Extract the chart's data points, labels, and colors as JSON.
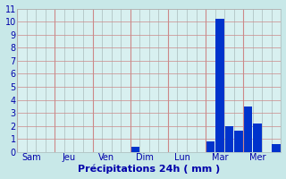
{
  "all_values": [
    0,
    0,
    0,
    0,
    0,
    0,
    0,
    0,
    0,
    0,
    0,
    0,
    0.4,
    0,
    0,
    0,
    0,
    0,
    0,
    0,
    0.8,
    10.2,
    2.0,
    1.6,
    3.5,
    2.2,
    0,
    0.6
  ],
  "n_bars": 28,
  "day_tick_positions": [
    1.5,
    5.5,
    9.5,
    13.5,
    17.5,
    21.5,
    25.5
  ],
  "day_labels": [
    "Sam",
    "Jeu",
    "Ven",
    "Dim",
    "Lun",
    "Mar",
    "Mer"
  ],
  "day_separator_positions": [
    0,
    4,
    8,
    12,
    16,
    20,
    24,
    28
  ],
  "bar_color": "#0033cc",
  "bg_color": "#c8e8e8",
  "plot_bg_color": "#d8f0f0",
  "grid_color_h": "#cc8888",
  "grid_color_v": "#aabbbb",
  "xlabel": "Précipitations 24h ( mm )",
  "ylim": [
    0,
    11
  ],
  "yticks": [
    0,
    1,
    2,
    3,
    4,
    5,
    6,
    7,
    8,
    9,
    10,
    11
  ],
  "xlabel_color": "#0000aa",
  "tick_color": "#0000aa",
  "label_fontsize": 7,
  "xlabel_fontsize": 8
}
